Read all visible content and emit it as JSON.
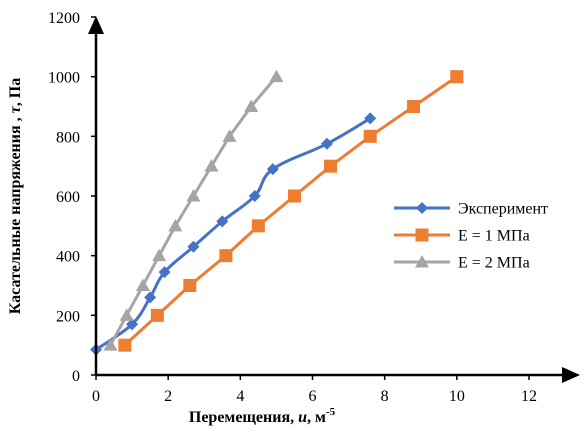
{
  "chart_data": {
    "type": "line",
    "title": "",
    "xlabel": {
      "prefix": "Перемещения, ",
      "var": "u",
      "mid": ", м",
      "sup": "-5"
    },
    "ylabel": {
      "prefix": "Касательные напряжения , ",
      "var": "τ",
      "suffix": ", Па"
    },
    "xlim": [
      0,
      12
    ],
    "ylim": [
      0,
      1200
    ],
    "xticks": [
      "0",
      "2",
      "4",
      "6",
      "8",
      "10",
      "12"
    ],
    "yticks": [
      "0",
      "200",
      "400",
      "600",
      "800",
      "1000",
      "1200"
    ],
    "grid": false,
    "legend_position": "right",
    "series": [
      {
        "name": "Эксперимент",
        "color": "#4472C4",
        "marker": "diamond",
        "x": [
          0,
          1.0,
          1.5,
          1.9,
          2.7,
          3.5,
          4.4,
          4.9,
          6.4,
          7.6
        ],
        "y": [
          85,
          170,
          260,
          345,
          430,
          515,
          600,
          690,
          775,
          860
        ]
      },
      {
        "name": "E = 1 МПа",
        "color": "#ED7D31",
        "marker": "square",
        "x": [
          0.8,
          1.7,
          2.6,
          3.6,
          4.5,
          5.5,
          6.5,
          7.6,
          8.8,
          10.0
        ],
        "y": [
          100,
          200,
          300,
          400,
          500,
          600,
          700,
          800,
          900,
          1000
        ]
      },
      {
        "name": "E = 2 МПа",
        "color": "#A5A5A5",
        "marker": "triangle",
        "x": [
          0.4,
          0.85,
          1.3,
          1.75,
          2.2,
          2.7,
          3.2,
          3.7,
          4.3,
          5.0
        ],
        "y": [
          100,
          200,
          300,
          400,
          500,
          600,
          700,
          800,
          900,
          1000
        ]
      }
    ]
  }
}
